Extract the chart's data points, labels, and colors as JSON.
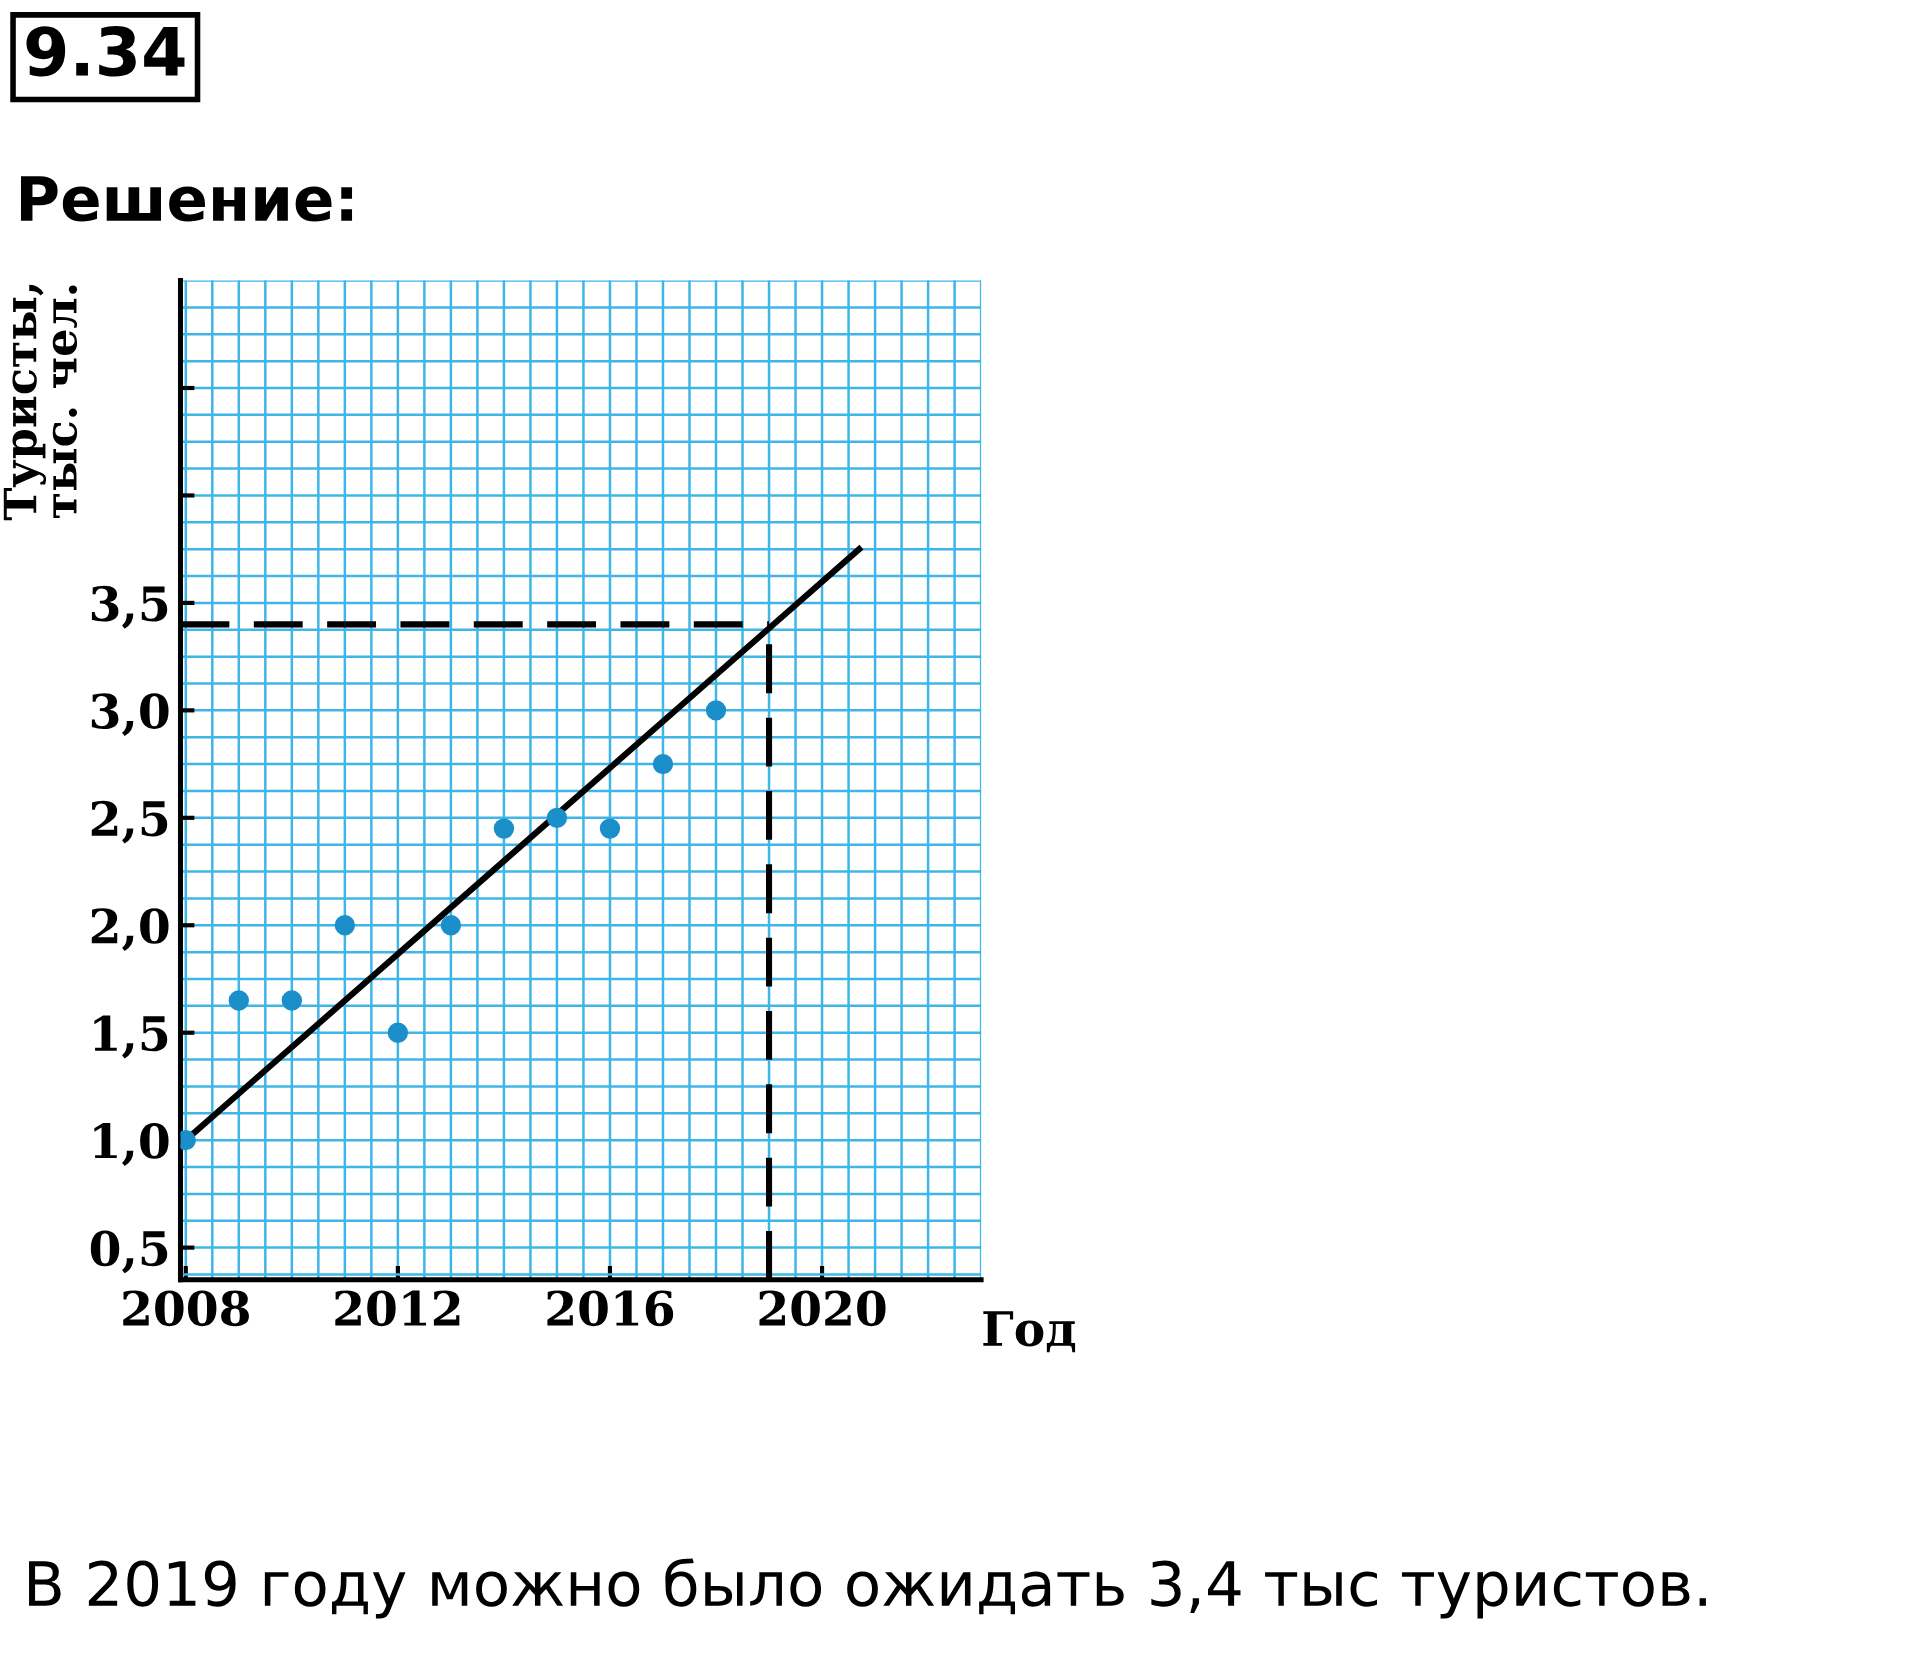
{
  "chart_data": {
    "type": "scatter",
    "title": "9.34",
    "subtitle": "Решение:",
    "xlabel": "Год",
    "ylabel": "Туристы,\nтыс. чел.",
    "x": [
      2008,
      2009,
      2010,
      2011,
      2012,
      2013,
      2014,
      2015,
      2016,
      2017,
      2018
    ],
    "series": [
      {
        "marker": "circle",
        "color": "#1a8fc9",
        "values": [
          1.0,
          1.65,
          1.65,
          2.0,
          1.5,
          2.0,
          2.45,
          2.5,
          2.45,
          2.75,
          3.0
        ]
      },
      {
        "type": "line",
        "color": "#000000",
        "x": [
          2008,
          2020.7
        ],
        "values": [
          1.0,
          3.75
        ]
      }
    ],
    "xlim": [
      2007.9,
      2023
    ],
    "ylim": [
      0.35,
      5.0
    ],
    "xticks": [
      2008,
      2012,
      2016,
      2020
    ],
    "yticks": [
      {
        "value": 0.5,
        "label": "0,5"
      },
      {
        "value": 1.0,
        "label": "1,0"
      },
      {
        "value": 1.5,
        "label": "1,5"
      },
      {
        "value": 2.0,
        "label": "2,0"
      },
      {
        "value": 2.5,
        "label": "2,5"
      },
      {
        "value": 3.0,
        "label": "3,0"
      },
      {
        "value": 3.5,
        "label": "3,5"
      },
      {
        "value": 4.0,
        "label": null
      },
      {
        "value": 4.5,
        "label": null
      }
    ],
    "ref_lines": [
      {
        "axis": "x",
        "value": 2019,
        "color": "#000000",
        "line_style": "dashed"
      },
      {
        "axis": "y",
        "value": 3.4,
        "color": "#000000",
        "line_style": "dashed"
      }
    ],
    "grid": true,
    "annotations": [
      "В 2019 году можно было ожидать 3,4 тыс туристов."
    ]
  }
}
